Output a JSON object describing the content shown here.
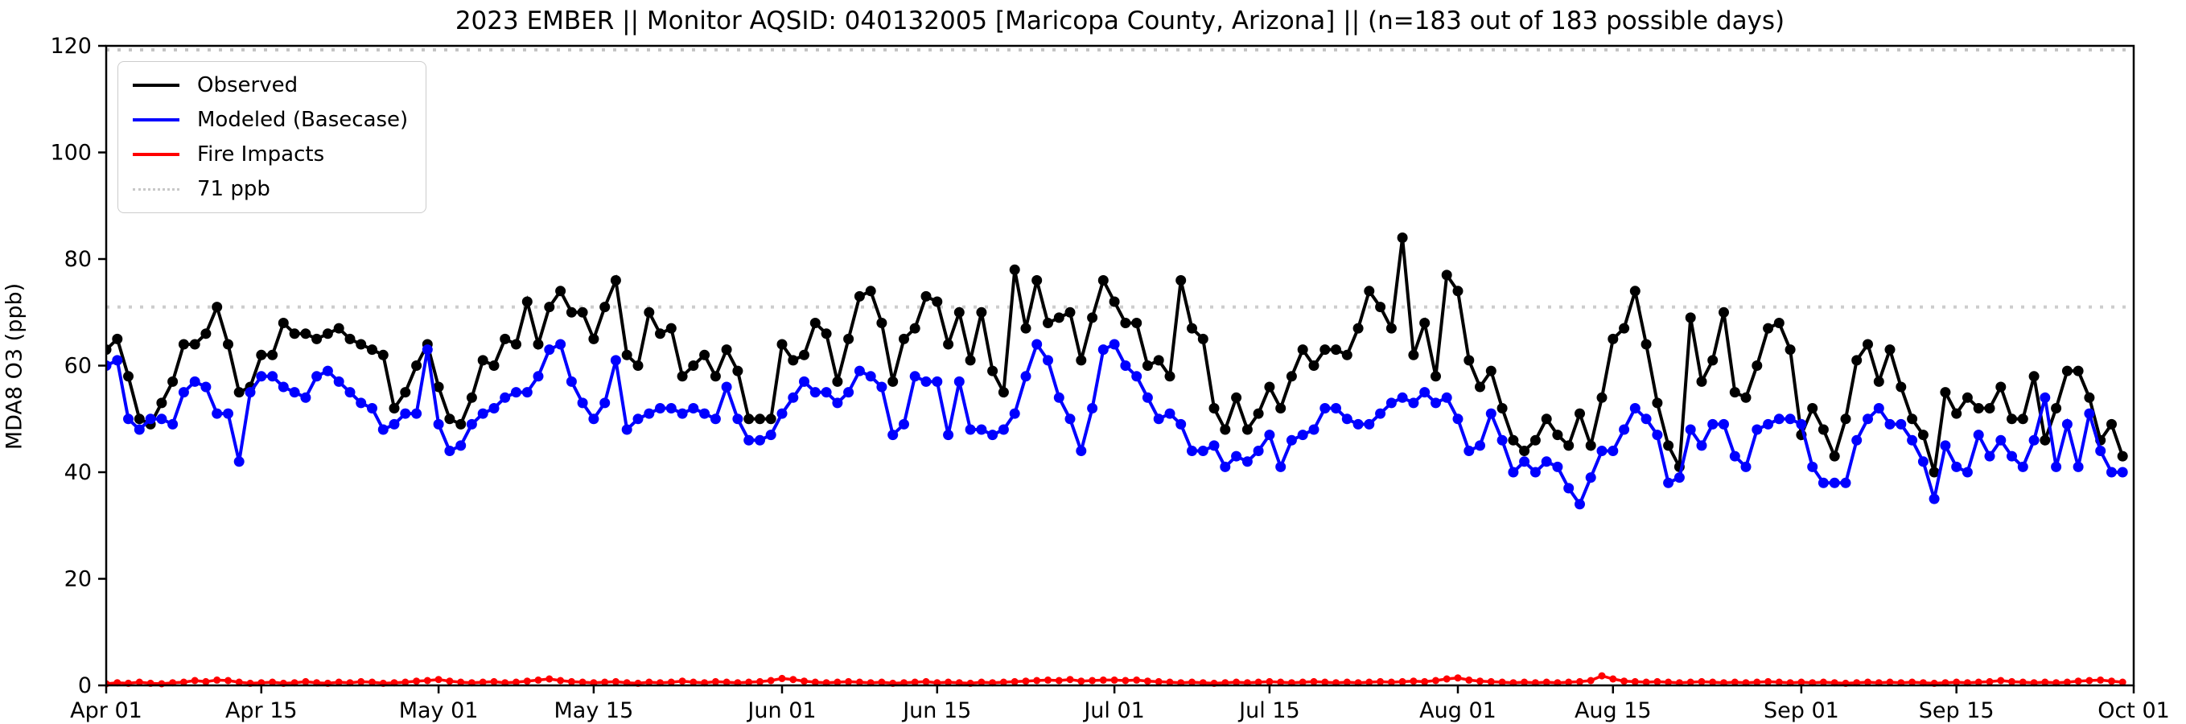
{
  "chart_data": {
    "type": "line",
    "title": "2023 EMBER || Monitor AQSID: 040132005 [Maricopa County, Arizona] || (n=183 out of 183 possible days)",
    "ylabel": "MDA8 O3 (ppb)",
    "ylim": [
      0,
      120
    ],
    "yticks": [
      0,
      20,
      40,
      60,
      80,
      100,
      120
    ],
    "x_start_date": "2023-04-01",
    "x_unit": "day",
    "x_total_days": 183,
    "x_tick_labels": [
      "Apr 01",
      "Apr 15",
      "May 01",
      "May 15",
      "Jun 01",
      "Jun 15",
      "Jul 01",
      "Jul 15",
      "Aug 01",
      "Aug 15",
      "Sep 01",
      "Sep 15",
      "Oct 01"
    ],
    "x_tick_day_offsets": [
      0,
      14,
      30,
      44,
      61,
      75,
      91,
      105,
      122,
      136,
      153,
      167,
      183
    ],
    "grid": "off",
    "legend_position": "upper-left",
    "reference_lines": [
      {
        "label": "71 ppb",
        "value": 71,
        "color": "#cdcdcd",
        "style": "dotted"
      },
      {
        "label": "",
        "value": 120,
        "color": "#c4c4c4",
        "style": "dotted"
      }
    ],
    "series": [
      {
        "name": "Observed",
        "color": "#000000",
        "marker": "circle",
        "values": [
          63,
          65,
          58,
          50,
          49,
          53,
          57,
          64,
          64,
          66,
          71,
          64,
          55,
          56,
          62,
          62,
          68,
          66,
          66,
          65,
          66,
          67,
          65,
          64,
          63,
          62,
          52,
          55,
          60,
          64,
          56,
          50,
          49,
          54,
          61,
          60,
          65,
          64,
          72,
          64,
          71,
          74,
          70,
          70,
          65,
          71,
          76,
          62,
          60,
          70,
          66,
          67,
          58,
          60,
          62,
          58,
          63,
          59,
          50,
          50,
          50,
          64,
          61,
          62,
          68,
          66,
          57,
          65,
          73,
          74,
          68,
          57,
          65,
          67,
          73,
          72,
          64,
          70,
          61,
          70,
          59,
          55,
          78,
          67,
          76,
          68,
          69,
          70,
          61,
          69,
          76,
          72,
          68,
          68,
          60,
          61,
          58,
          76,
          67,
          65,
          52,
          48,
          54,
          48,
          51,
          56,
          52,
          58,
          63,
          60,
          63,
          63,
          62,
          67,
          74,
          71,
          67,
          84,
          62,
          68,
          58,
          77,
          74,
          61,
          56,
          59,
          52,
          46,
          44,
          46,
          50,
          47,
          45,
          51,
          45,
          54,
          65,
          67,
          74,
          64,
          53,
          45,
          41,
          69,
          57,
          61,
          70,
          55,
          54,
          60,
          67,
          68,
          63,
          47,
          52,
          48,
          43,
          50,
          61,
          64,
          57,
          63,
          56,
          50,
          47,
          40,
          55,
          51,
          54,
          52,
          52,
          56,
          50,
          50,
          58,
          46,
          52,
          59,
          59,
          54,
          46,
          49,
          43
        ]
      },
      {
        "name": "Modeled (Basecase)",
        "color": "#0000ff",
        "marker": "circle",
        "values": [
          60,
          61,
          50,
          48,
          50,
          50,
          49,
          55,
          57,
          56,
          51,
          51,
          42,
          55,
          58,
          58,
          56,
          55,
          54,
          58,
          59,
          57,
          55,
          53,
          52,
          48,
          49,
          51,
          51,
          63,
          49,
          44,
          45,
          49,
          51,
          52,
          54,
          55,
          55,
          58,
          63,
          64,
          57,
          53,
          50,
          53,
          61,
          48,
          50,
          51,
          52,
          52,
          51,
          52,
          51,
          50,
          56,
          50,
          46,
          46,
          47,
          51,
          54,
          57,
          55,
          55,
          53,
          55,
          59,
          58,
          56,
          47,
          49,
          58,
          57,
          57,
          47,
          57,
          48,
          48,
          47,
          48,
          51,
          58,
          64,
          61,
          54,
          50,
          44,
          52,
          63,
          64,
          60,
          58,
          54,
          50,
          51,
          49,
          44,
          44,
          45,
          41,
          43,
          42,
          44,
          47,
          41,
          46,
          47,
          48,
          52,
          52,
          50,
          49,
          49,
          51,
          53,
          54,
          53,
          55,
          53,
          54,
          50,
          44,
          45,
          51,
          46,
          40,
          42,
          40,
          42,
          41,
          37,
          34,
          39,
          44,
          44,
          48,
          52,
          50,
          47,
          38,
          39,
          48,
          45,
          49,
          49,
          43,
          41,
          48,
          49,
          50,
          50,
          49,
          41,
          38,
          38,
          38,
          46,
          50,
          52,
          49,
          49,
          46,
          42,
          35,
          45,
          41,
          40,
          47,
          43,
          46,
          43,
          41,
          46,
          54,
          41,
          49,
          41,
          51,
          44,
          40,
          40
        ]
      },
      {
        "name": "Fire Impacts",
        "color": "#ff0000",
        "marker": "circle",
        "values": [
          0.3,
          0.5,
          0.4,
          0.6,
          0.4,
          0.3,
          0.5,
          0.6,
          0.9,
          0.7,
          1.0,
          0.9,
          0.6,
          0.4,
          0.5,
          0.6,
          0.4,
          0.5,
          0.7,
          0.5,
          0.4,
          0.6,
          0.5,
          0.7,
          0.6,
          0.4,
          0.5,
          0.6,
          0.8,
          0.9,
          1.1,
          0.8,
          0.6,
          0.5,
          0.6,
          0.7,
          0.5,
          0.6,
          0.8,
          1.0,
          1.2,
          0.9,
          0.7,
          0.6,
          0.5,
          0.6,
          0.7,
          0.5,
          0.4,
          0.6,
          0.5,
          0.6,
          0.8,
          0.6,
          0.5,
          0.7,
          0.6,
          0.5,
          0.6,
          0.7,
          0.9,
          1.3,
          1.1,
          0.8,
          0.6,
          0.5,
          0.6,
          0.7,
          0.6,
          0.5,
          0.6,
          0.4,
          0.5,
          0.6,
          0.7,
          0.5,
          0.6,
          0.5,
          0.4,
          0.6,
          0.5,
          0.6,
          0.7,
          0.8,
          0.9,
          1.0,
          0.9,
          1.1,
          0.8,
          0.9,
          1.0,
          1.0,
          0.9,
          1.0,
          0.8,
          0.7,
          0.6,
          0.5,
          0.6,
          0.5,
          0.4,
          0.5,
          0.6,
          0.5,
          0.6,
          0.7,
          0.6,
          0.5,
          0.6,
          0.7,
          0.6,
          0.5,
          0.6,
          0.5,
          0.6,
          0.7,
          0.6,
          0.7,
          0.8,
          0.7,
          0.9,
          1.2,
          1.4,
          1.0,
          0.8,
          0.7,
          0.6,
          0.5,
          0.6,
          0.5,
          0.6,
          0.5,
          0.6,
          0.7,
          0.9,
          1.8,
          1.2,
          0.8,
          0.7,
          0.6,
          0.7,
          0.6,
          0.5,
          0.6,
          0.7,
          0.6,
          0.5,
          0.6,
          0.5,
          0.6,
          0.7,
          0.6,
          0.5,
          0.6,
          0.5,
          0.6,
          0.5,
          0.4,
          0.5,
          0.6,
          0.5,
          0.6,
          0.5,
          0.6,
          0.5,
          0.4,
          0.5,
          0.6,
          0.5,
          0.6,
          0.7,
          0.9,
          0.7,
          0.6,
          0.5,
          0.6,
          0.5,
          0.6,
          0.8,
          0.9,
          1.0,
          0.8,
          0.6
        ]
      }
    ],
    "legend": [
      {
        "label": "Observed",
        "color": "#000000",
        "style": "solid"
      },
      {
        "label": "Modeled (Basecase)",
        "color": "#0000ff",
        "style": "solid"
      },
      {
        "label": "Fire Impacts",
        "color": "#ff0000",
        "style": "solid"
      },
      {
        "label": "71 ppb",
        "color": "#c8c8c8",
        "style": "dotted"
      }
    ]
  }
}
